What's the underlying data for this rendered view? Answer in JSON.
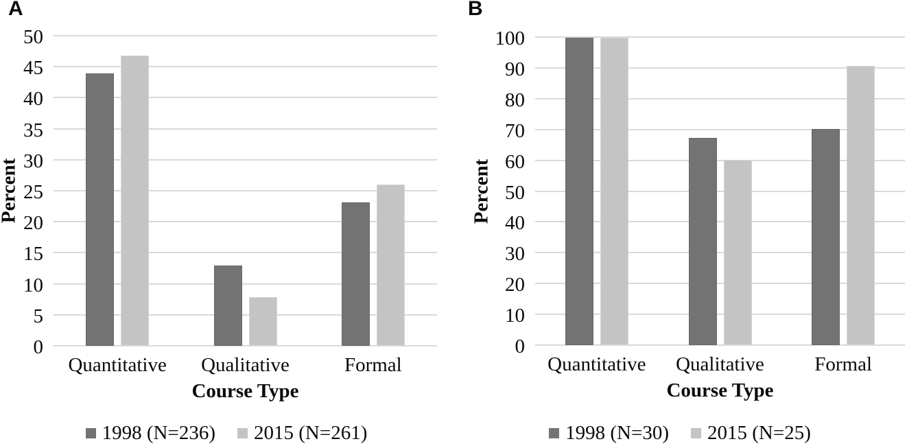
{
  "colors": {
    "series_dark": "#737373",
    "series_light": "#c4c4c4",
    "gridline": "#d9d9d9",
    "text": "#0a0a0a",
    "background": "#ffffff"
  },
  "chart_data": [
    {
      "type": "bar",
      "panel_label": "A",
      "title": "",
      "xlabel": "Course Type",
      "ylabel": "Percent",
      "ylim": [
        0,
        50
      ],
      "ytick_step": 5,
      "yticks": [
        "50",
        "45",
        "40",
        "35",
        "30",
        "25",
        "20",
        "15",
        "10",
        "5",
        "0"
      ],
      "categories": [
        "Quantitative",
        "Qualitative",
        "Formal"
      ],
      "series": [
        {
          "name": "1998 (N=236)",
          "color": "#737373",
          "values": [
            43.9,
            12.9,
            23.1
          ]
        },
        {
          "name": "2015 (N=261)",
          "color": "#c4c4c4",
          "values": [
            46.8,
            7.9,
            26.0
          ]
        }
      ],
      "grid": "horizontal",
      "legend_position": "bottom"
    },
    {
      "type": "bar",
      "panel_label": "B",
      "title": "",
      "xlabel": "Course Type",
      "ylabel": "Percent",
      "ylim": [
        0,
        100
      ],
      "ytick_step": 10,
      "yticks": [
        "100",
        "90",
        "80",
        "70",
        "60",
        "50",
        "40",
        "30",
        "20",
        "10",
        "0"
      ],
      "categories": [
        "Quantitative",
        "Qualitative",
        "Formal"
      ],
      "series": [
        {
          "name": "1998 (N=30)",
          "color": "#737373",
          "values": [
            99.7,
            67.2,
            70.2
          ]
        },
        {
          "name": "2015 (N=25)",
          "color": "#c4c4c4",
          "values": [
            99.7,
            60.2,
            90.7
          ]
        }
      ],
      "grid": "horizontal",
      "legend_position": "bottom"
    }
  ]
}
